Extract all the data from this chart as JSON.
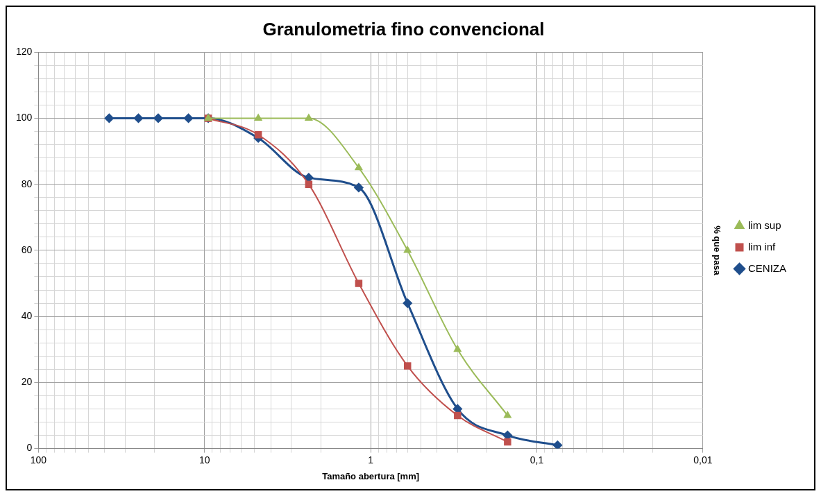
{
  "chart_data": {
    "type": "line",
    "title": "Granulometria fino convencional",
    "xlabel": "Tamaño abertura [mm]",
    "ylabel": "% que pasa",
    "log": "x",
    "legend": "right",
    "grid": true,
    "xlim": [
      100,
      0.01
    ],
    "xticks": [
      100,
      {
        "value": 90,
        "label": null
      },
      {
        "value": 80,
        "label": null
      },
      {
        "value": 70,
        "label": null
      },
      {
        "value": 60,
        "label": null
      },
      {
        "value": 50,
        "label": null
      },
      {
        "value": 40,
        "label": null
      },
      {
        "value": 30,
        "label": null
      },
      {
        "value": 20,
        "label": null
      },
      10,
      {
        "value": 9,
        "label": null
      },
      {
        "value": 8,
        "label": null
      },
      {
        "value": 7,
        "label": null
      },
      {
        "value": 6,
        "label": null
      },
      {
        "value": 5,
        "label": null
      },
      {
        "value": 4,
        "label": null
      },
      {
        "value": 3,
        "label": null
      },
      {
        "value": 2,
        "label": null
      },
      1,
      {
        "value": 0.9,
        "label": null
      },
      {
        "value": 0.8,
        "label": null
      },
      {
        "value": 0.7,
        "label": null
      },
      {
        "value": 0.6,
        "label": null
      },
      {
        "value": 0.5,
        "label": null
      },
      {
        "value": 0.4,
        "label": null
      },
      {
        "value": 0.3,
        "label": null
      },
      {
        "value": 0.2,
        "label": null
      },
      {
        "value": 0.1,
        "label": "0,1"
      },
      {
        "value": 0.09,
        "label": null
      },
      {
        "value": 0.08,
        "label": null
      },
      {
        "value": 0.07,
        "label": null
      },
      {
        "value": 0.06,
        "label": null
      },
      {
        "value": 0.05,
        "label": null
      },
      {
        "value": 0.04,
        "label": null
      },
      {
        "value": 0.03,
        "label": null
      },
      {
        "value": 0.02,
        "label": null
      },
      {
        "value": 0.01,
        "label": "0,01"
      }
    ],
    "ylim": [
      0,
      120
    ],
    "yticks": [
      0,
      {
        "value": 4,
        "label": null
      },
      {
        "value": 8,
        "label": null
      },
      {
        "value": 12,
        "label": null
      },
      {
        "value": 16,
        "label": null
      },
      20,
      {
        "value": 24,
        "label": null
      },
      {
        "value": 28,
        "label": null
      },
      {
        "value": 32,
        "label": null
      },
      {
        "value": 36,
        "label": null
      },
      40,
      {
        "value": 44,
        "label": null
      },
      {
        "value": 48,
        "label": null
      },
      {
        "value": 52,
        "label": null
      },
      {
        "value": 56,
        "label": null
      },
      60,
      {
        "value": 64,
        "label": null
      },
      {
        "value": 68,
        "label": null
      },
      {
        "value": 72,
        "label": null
      },
      {
        "value": 76,
        "label": null
      },
      80,
      {
        "value": 84,
        "label": null
      },
      {
        "value": 88,
        "label": null
      },
      {
        "value": 92,
        "label": null
      },
      {
        "value": 96,
        "label": null
      },
      100,
      {
        "value": 104,
        "label": null
      },
      {
        "value": 108,
        "label": null
      },
      {
        "value": 112,
        "label": null
      },
      {
        "value": 116,
        "label": null
      },
      120
    ],
    "series": [
      {
        "name": "CENIZA",
        "color": "#1f4e8c",
        "marker": "diamond",
        "x": [
          37.5,
          25,
          19,
          12.5,
          9.5,
          4.75,
          2.36,
          1.18,
          0.6,
          0.3,
          0.15,
          0.075
        ],
        "values": [
          100,
          100,
          100,
          100,
          100,
          94,
          82,
          79,
          44,
          12,
          4,
          1
        ]
      },
      {
        "name": "lim inf",
        "color": "#c0504d",
        "marker": "square",
        "x": [
          9.5,
          4.75,
          2.36,
          1.18,
          0.6,
          0.3,
          0.15
        ],
        "values": [
          100,
          95,
          80,
          50,
          25,
          10,
          2
        ]
      },
      {
        "name": "lim sup",
        "color": "#9bbb59",
        "marker": "triangle",
        "x": [
          9.5,
          4.75,
          2.36,
          1.18,
          0.6,
          0.3,
          0.15
        ],
        "values": [
          100,
          100,
          100,
          85,
          60,
          30,
          10
        ]
      }
    ]
  }
}
